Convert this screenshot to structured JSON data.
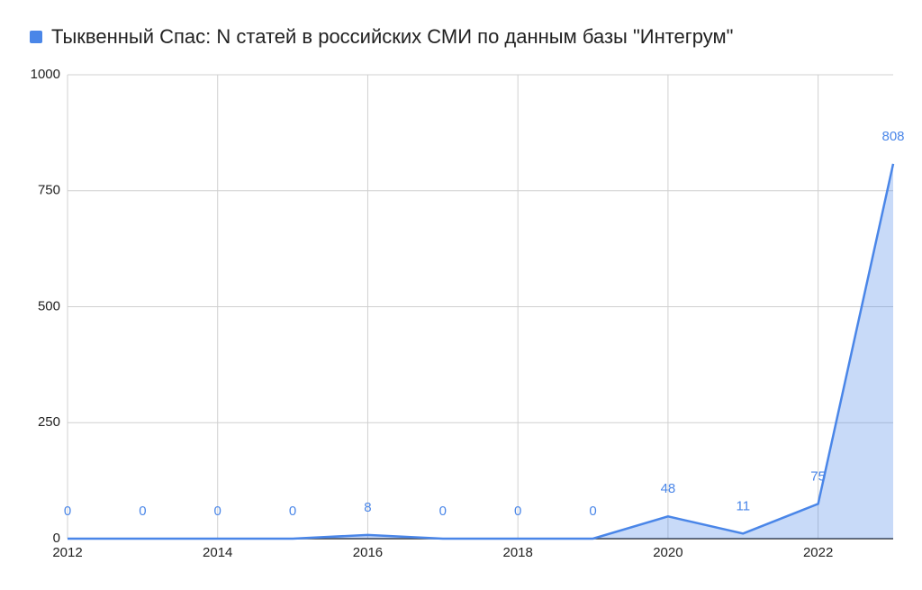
{
  "chart_data": {
    "type": "area",
    "x": [
      2012,
      2013,
      2014,
      2015,
      2016,
      2017,
      2018,
      2019,
      2020,
      2021,
      2022,
      2023
    ],
    "series": [
      {
        "name": "Тыквенный Спас: N статей в российских СМИ  по данным базы \"Интегрум\"",
        "color": "#4a86e8",
        "values": [
          0,
          0,
          0,
          0,
          8,
          0,
          0,
          0,
          48,
          11,
          75,
          808
        ]
      }
    ],
    "xlim": [
      2012,
      2023
    ],
    "xticks": [
      2012,
      2014,
      2016,
      2018,
      2020,
      2022
    ],
    "ylim": [
      0,
      1000
    ],
    "yticks": [
      0,
      250,
      500,
      750,
      1000
    ],
    "grid": true
  }
}
